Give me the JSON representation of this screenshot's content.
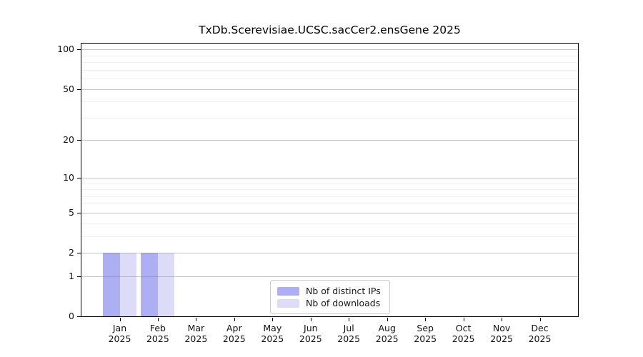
{
  "chart_data": {
    "type": "bar",
    "title": "TxDb.Scerevisiae.UCSC.sacCer2.ensGene 2025",
    "categories": [
      "Jan 2025",
      "Feb 2025",
      "Mar 2025",
      "Apr 2025",
      "May 2025",
      "Jun 2025",
      "Jul 2025",
      "Aug 2025",
      "Sep 2025",
      "Oct 2025",
      "Nov 2025",
      "Dec 2025"
    ],
    "x_tick_months": [
      "Jan",
      "Feb",
      "Mar",
      "Apr",
      "May",
      "Jun",
      "Jul",
      "Aug",
      "Sep",
      "Oct",
      "Nov",
      "Dec"
    ],
    "x_tick_year": "2025",
    "series": [
      {
        "name": "Nb of distinct IPs",
        "color": "#aeaef2",
        "values": [
          2,
          2,
          0,
          0,
          0,
          0,
          0,
          0,
          0,
          0,
          0,
          0
        ]
      },
      {
        "name": "Nb of downloads",
        "color": "#dcdcf8",
        "values": [
          2,
          2,
          0,
          0,
          0,
          0,
          0,
          0,
          0,
          0,
          0,
          0
        ]
      }
    ],
    "yscale": "log1p",
    "ylim": [
      0,
      113
    ],
    "y_major_ticks": [
      0,
      1,
      2,
      5,
      10,
      20,
      50,
      100
    ],
    "y_minor_ticks": [
      3,
      4,
      6,
      7,
      8,
      9,
      30,
      40,
      60,
      70,
      80,
      90
    ],
    "grid": "horizontal",
    "legend_position": "bottom-center"
  },
  "colors": {
    "axis": "#000000",
    "major_grid": "#c3c3c3",
    "minor_grid": "#efefef",
    "legend_border": "#cccccc",
    "background": "#ffffff"
  }
}
